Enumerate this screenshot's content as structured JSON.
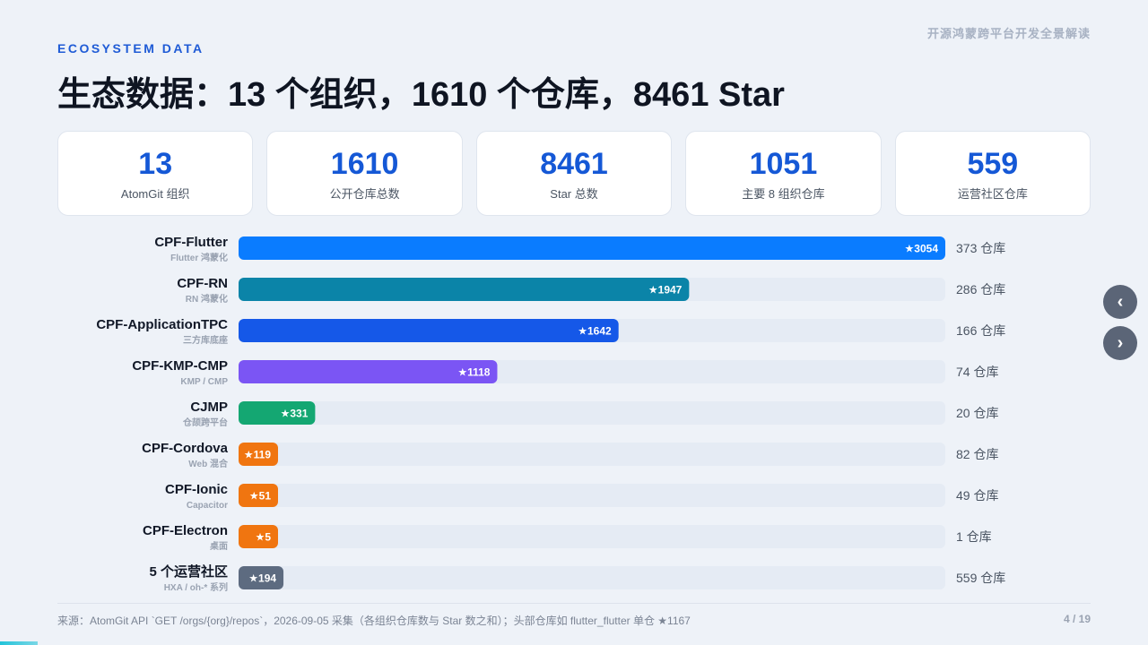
{
  "header": {
    "deck_title": "开源鸿蒙跨平台开发全景解读",
    "eyebrow": "ECOSYSTEM DATA",
    "title": "生态数据：13 个组织，1610 个仓库，8461 Star"
  },
  "cards": [
    {
      "value": "13",
      "label": "AtomGit 组织"
    },
    {
      "value": "1610",
      "label": "公开仓库总数"
    },
    {
      "value": "8461",
      "label": "Star 总数"
    },
    {
      "value": "1051",
      "label": "主要 8 组织仓库"
    },
    {
      "value": "559",
      "label": "运营社区仓库"
    }
  ],
  "chart_data": {
    "type": "bar",
    "orientation": "horizontal",
    "xlim": [
      0,
      3054
    ],
    "grid": false,
    "categories": [
      "CPF-Flutter",
      "CPF-RN",
      "CPF-ApplicationTPC",
      "CPF-KMP-CMP",
      "CJMP",
      "CPF-Cordova",
      "CPF-Ionic",
      "CPF-Electron",
      "5 个运营社区"
    ],
    "subtitles": [
      "Flutter 鸿蒙化",
      "RN 鸿蒙化",
      "三方库底座",
      "KMP / CMP",
      "仓颉跨平台",
      "Web 混合",
      "Capacitor",
      "桌面",
      "HXA / oh-* 系列"
    ],
    "series": [
      {
        "values": [
          3054,
          1947,
          1642,
          1118,
          331,
          119,
          51,
          5,
          194
        ]
      }
    ],
    "bar_labels": [
      "★3054",
      "★1947",
      "★1642",
      "★1118",
      "★331",
      "★119",
      "★51",
      "★5",
      "★194"
    ],
    "repo_labels": [
      "373 仓库",
      "286 仓库",
      "166 仓库",
      "74 仓库",
      "20 仓库",
      "82 仓库",
      "49 仓库",
      "1 仓库",
      "559 仓库"
    ],
    "colors": [
      "#0a7cff",
      "#0b84a8",
      "#1558e8",
      "#7b55f4",
      "#14a772",
      "#f07510",
      "#f07510",
      "#f07510",
      "#5d6b80"
    ],
    "track_color": "#e5ebf4"
  },
  "footer": {
    "source": "来源：AtomGit API `GET /orgs/{org}/repos`，2026-09-05 采集（各组织仓库数与 Star 数之和）；头部仓库如 flutter_flutter 单仓 ★1167",
    "page": "4 / 19"
  },
  "nav": {
    "prev": "‹",
    "next": "›"
  }
}
